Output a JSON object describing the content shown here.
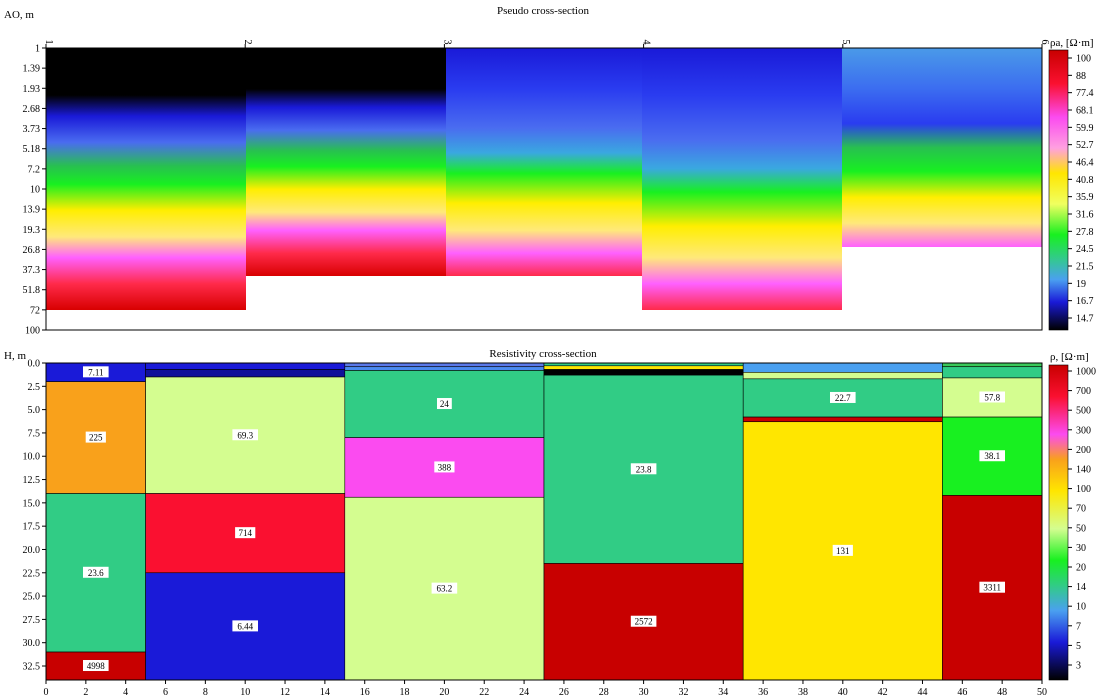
{
  "pseudo": {
    "title": "Pseudo cross-section",
    "ylabel": "AO, m",
    "top_ticks": [
      "1",
      "2",
      "3",
      "4",
      "5",
      "6"
    ],
    "y_ticks": [
      "1",
      "1.39",
      "1.93",
      "2.68",
      "3.73",
      "5.18",
      "7.2",
      "10",
      "13.9",
      "19.3",
      "26.8",
      "37.3",
      "51.8",
      "72",
      "100"
    ],
    "colorbar_label": "ρa, [Ω·m]",
    "colorbar_ticks": [
      "100",
      "88",
      "77.4",
      "68.1",
      "59.9",
      "52.7",
      "46.4",
      "40.8",
      "35.9",
      "31.6",
      "27.8",
      "24.5",
      "21.5",
      "19",
      "16.7",
      "14.7"
    ]
  },
  "resist": {
    "title": "Resistivity cross-section",
    "ylabel": "H, m",
    "y_ticks": [
      "0.0",
      "2.5",
      "5.0",
      "7.5",
      "10.0",
      "12.5",
      "15.0",
      "17.5",
      "20.0",
      "22.5",
      "25.0",
      "27.5",
      "30.0",
      "32.5"
    ],
    "x_ticks": [
      "0",
      "2",
      "4",
      "6",
      "8",
      "10",
      "12",
      "14",
      "16",
      "18",
      "20",
      "22",
      "24",
      "26",
      "28",
      "30",
      "32",
      "34",
      "36",
      "38",
      "40",
      "42",
      "44",
      "46",
      "48",
      "50"
    ],
    "colorbar_label": "ρ, [Ω·m]",
    "colorbar_ticks": [
      "1000",
      "700",
      "500",
      "300",
      "200",
      "140",
      "100",
      "70",
      "50",
      "30",
      "20",
      "14",
      "10",
      "7",
      "5",
      "3"
    ]
  },
  "chart_data": [
    {
      "type": "heatmap",
      "title": "Pseudo cross-section",
      "ylabel": "AO, m",
      "x_range": [
        1,
        6
      ],
      "y_scale": "log",
      "y_range": [
        1,
        100
      ],
      "color_scale": "ρa, [Ω·m]",
      "color_range": [
        14.7,
        100
      ],
      "stations": [
        1,
        2,
        3,
        4,
        5,
        6
      ],
      "max_depth_per_segment": [
        {
          "x": [
            1,
            2
          ],
          "ao_max": 72
        },
        {
          "x": [
            2,
            4
          ],
          "ao_max": 37.3
        },
        {
          "x": [
            4,
            5
          ],
          "ao_max": 72
        },
        {
          "x": [
            5,
            6
          ],
          "ao_max": 26.8
        }
      ]
    },
    {
      "type": "heatmap",
      "title": "Resistivity cross-section",
      "ylabel": "H, m",
      "x_range": [
        0,
        50
      ],
      "y_range": [
        0,
        34
      ],
      "color_scale": "ρ, [Ω·m]",
      "color_range": [
        3,
        1000
      ],
      "columns": [
        {
          "x": [
            0,
            5
          ],
          "layers": [
            {
              "top": 0,
              "bottom": 2,
              "value": 7.11,
              "label": "7.11",
              "color": "#1a1ad8"
            },
            {
              "top": 2,
              "bottom": 14,
              "value": 225,
              "label": "225",
              "color": "#f9a11b"
            },
            {
              "top": 14,
              "bottom": 31,
              "value": 23.6,
              "label": "23.6",
              "color": "#31cc85"
            },
            {
              "top": 31,
              "bottom": 34,
              "value": 4998,
              "label": "4998",
              "color": "#c80000"
            }
          ]
        },
        {
          "x": [
            5,
            15
          ],
          "layers": [
            {
              "top": 0,
              "bottom": 0.7,
              "value": 7,
              "label": "",
              "color": "#1a1ad8"
            },
            {
              "top": 0.7,
              "bottom": 1.5,
              "value": 5,
              "label": "",
              "color": "#10109a"
            },
            {
              "top": 1.5,
              "bottom": 14,
              "value": 69.3,
              "label": "69.3",
              "color": "#d4fd90"
            },
            {
              "top": 14,
              "bottom": 22.5,
              "value": 714,
              "label": "714",
              "color": "#fa1030"
            },
            {
              "top": 22.5,
              "bottom": 34,
              "value": 6.44,
              "label": "6.44",
              "color": "#1a1ad8"
            }
          ]
        },
        {
          "x": [
            15,
            25
          ],
          "layers": [
            {
              "top": 0,
              "bottom": 0.4,
              "value": 10,
              "label": "",
              "color": "#5a78e8"
            },
            {
              "top": 0.4,
              "bottom": 0.8,
              "value": 14,
              "label": "",
              "color": "#4a8af0"
            },
            {
              "top": 0.8,
              "bottom": 8,
              "value": 24,
              "label": "24",
              "color": "#31cc85"
            },
            {
              "top": 8,
              "bottom": 14.4,
              "value": 388,
              "label": "388",
              "color": "#fb4bf0"
            },
            {
              "top": 14.4,
              "bottom": 34,
              "value": 63.2,
              "label": "63.2",
              "color": "#d4fd90"
            }
          ]
        },
        {
          "x": [
            25,
            35
          ],
          "layers": [
            {
              "top": 0,
              "bottom": 0.3,
              "value": 20,
              "label": "",
              "color": "#31cc85"
            },
            {
              "top": 0.3,
              "bottom": 0.7,
              "value": 140,
              "label": "",
              "color": "#ffe600"
            },
            {
              "top": 0.7,
              "bottom": 1.3,
              "value": 3,
              "label": "",
              "color": "#000000"
            },
            {
              "top": 1.3,
              "bottom": 21.5,
              "value": 23.8,
              "label": "23.8",
              "color": "#31cc85"
            },
            {
              "top": 21.5,
              "bottom": 34,
              "value": 2572,
              "label": "2572",
              "color": "#c80000"
            }
          ]
        },
        {
          "x": [
            35,
            45
          ],
          "layers": [
            {
              "top": 0,
              "bottom": 1,
              "value": 14,
              "label": "",
              "color": "#4aa0f0"
            },
            {
              "top": 1,
              "bottom": 1.7,
              "value": 30,
              "label": "",
              "color": "#d4fd90"
            },
            {
              "top": 1.7,
              "bottom": 5.8,
              "value": 22.7,
              "label": "22.7",
              "color": "#31cc85"
            },
            {
              "top": 5.8,
              "bottom": 6.3,
              "value": 700,
              "label": "",
              "color": "#c80000"
            },
            {
              "top": 6.3,
              "bottom": 34,
              "value": 131,
              "label": "131",
              "color": "#ffe600"
            }
          ]
        },
        {
          "x": [
            45,
            50
          ],
          "layers": [
            {
              "top": 0,
              "bottom": 0.4,
              "value": 30,
              "label": "",
              "color": "#3ac85a"
            },
            {
              "top": 0.4,
              "bottom": 1.6,
              "value": 20,
              "label": "",
              "color": "#31cc85"
            },
            {
              "top": 1.6,
              "bottom": 5.8,
              "value": 57.8,
              "label": "57.8",
              "color": "#d4fd90"
            },
            {
              "top": 5.8,
              "bottom": 14.2,
              "value": 38.1,
              "label": "38.1",
              "color": "#18f020"
            },
            {
              "top": 14.2,
              "bottom": 34,
              "value": 3311,
              "label": "3311",
              "color": "#c80000"
            }
          ]
        }
      ]
    }
  ]
}
